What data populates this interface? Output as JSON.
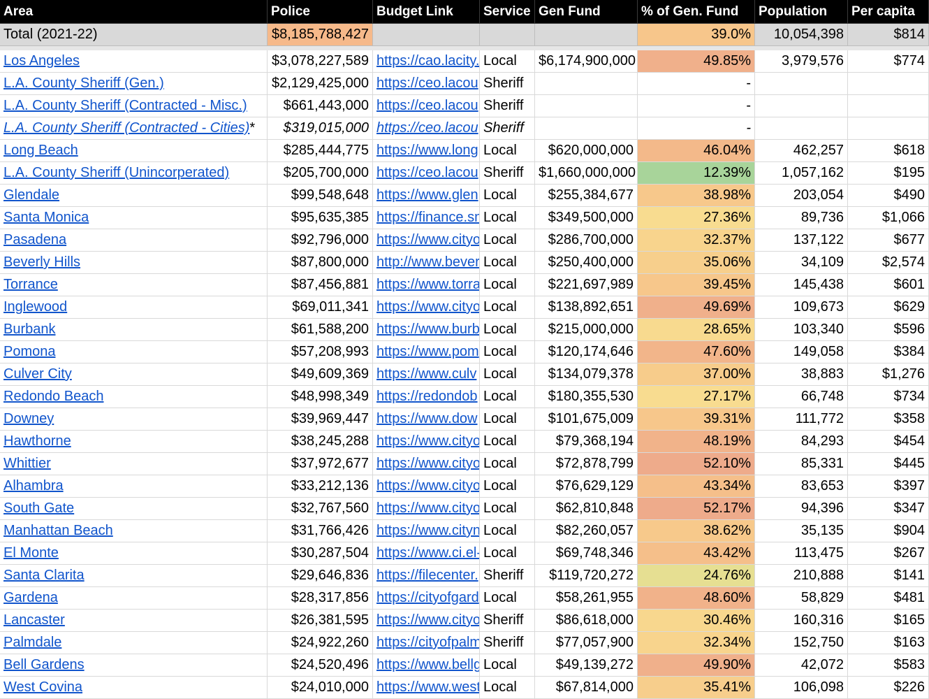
{
  "header": [
    "Area",
    "Police",
    "Budget Link",
    "Service",
    "Gen Fund",
    "% of Gen. Fund",
    "Population",
    "Per capita"
  ],
  "total": {
    "area": "Total (2021-22)",
    "police": "$8,185,788,427",
    "link": "",
    "service": "",
    "gen_fund": "",
    "pct": "39.0%",
    "pct_color": "#f7c68b",
    "population": "10,054,398",
    "per_capita": "$814",
    "police_color": "#f6b98a"
  },
  "rows": [
    {
      "area": "Los Angeles",
      "police": "$3,078,227,589",
      "link": "https://cao.lacity.",
      "service": "Local",
      "gen_fund": "$6,174,900,000",
      "pct": "49.85%",
      "pct_color": "#f0b08b",
      "population": "3,979,576",
      "per_capita": "$774",
      "italic": false
    },
    {
      "area": "L.A. County Sheriff (Gen.)",
      "police": "$2,129,425,000",
      "link": "https://ceo.lacou",
      "service": "Sheriff",
      "gen_fund": "",
      "pct": "-",
      "pct_color": "",
      "population": "",
      "per_capita": "",
      "italic": false
    },
    {
      "area": "L.A. County Sheriff (Contracted - Misc.)",
      "police": "$661,443,000",
      "link": "https://ceo.lacou",
      "service": "Sheriff",
      "gen_fund": "",
      "pct": "-",
      "pct_color": "",
      "population": "",
      "per_capita": "",
      "italic": false
    },
    {
      "area": "L.A. County Sheriff (Contracted - Cities)",
      "area_suffix": "*",
      "police": "$319,015,000",
      "link": "https://ceo.lacou",
      "service": "Sheriff",
      "gen_fund": "",
      "pct": "-",
      "pct_color": "",
      "population": "",
      "per_capita": "",
      "italic": true
    },
    {
      "area": "Long Beach",
      "police": "$285,444,775",
      "link": "https://www.long",
      "service": "Local",
      "gen_fund": "$620,000,000",
      "pct": "46.04%",
      "pct_color": "#f3b98a",
      "population": "462,257",
      "per_capita": "$618",
      "italic": false
    },
    {
      "area": "L.A. County Sheriff (Unincorperated)",
      "police": "$205,700,000",
      "link": "https://ceo.lacou",
      "service": "Sheriff",
      "gen_fund": "$1,660,000,000",
      "pct": "12.39%",
      "pct_color": "#a8d49a",
      "population": "1,057,162",
      "per_capita": "$195",
      "italic": false
    },
    {
      "area": "Glendale",
      "police": "$99,548,648",
      "link": "https://www.glen",
      "service": "Local",
      "gen_fund": "$255,384,677",
      "pct": "38.98%",
      "pct_color": "#f7c88b",
      "population": "203,054",
      "per_capita": "$490",
      "italic": false
    },
    {
      "area": "Santa Monica",
      "police": "$95,635,385",
      "link": "https://finance.sm",
      "service": "Local",
      "gen_fund": "$349,500,000",
      "pct": "27.36%",
      "pct_color": "#f8dc90",
      "population": "89,736",
      "per_capita": "$1,066",
      "italic": false
    },
    {
      "area": "Pasadena",
      "police": "$92,796,000",
      "link": "https://www.cityo",
      "service": "Local",
      "gen_fund": "$286,700,000",
      "pct": "32.37%",
      "pct_color": "#f8d48d",
      "population": "137,122",
      "per_capita": "$677",
      "italic": false
    },
    {
      "area": "Beverly Hills",
      "police": "$87,800,000",
      "link": "http://www.bever",
      "service": "Local",
      "gen_fund": "$250,400,000",
      "pct": "35.06%",
      "pct_color": "#f7cf8c",
      "population": "34,109",
      "per_capita": "$2,574",
      "italic": false
    },
    {
      "area": "Torrance",
      "police": "$87,456,881",
      "link": "https://www.torra",
      "service": "Local",
      "gen_fund": "$221,697,989",
      "pct": "39.45%",
      "pct_color": "#f7c78b",
      "population": "145,438",
      "per_capita": "$601",
      "italic": false
    },
    {
      "area": "Inglewood",
      "police": "$69,011,341",
      "link": "https://www.cityo",
      "service": "Local",
      "gen_fund": "$138,892,651",
      "pct": "49.69%",
      "pct_color": "#f0b08b",
      "population": "109,673",
      "per_capita": "$629",
      "italic": false
    },
    {
      "area": "Burbank",
      "police": "$61,588,200",
      "link": "https://www.burb",
      "service": "Local",
      "gen_fund": "$215,000,000",
      "pct": "28.65%",
      "pct_color": "#f8da8f",
      "population": "103,340",
      "per_capita": "$596",
      "italic": false
    },
    {
      "area": "Pomona",
      "police": "$57,208,993",
      "link": "https://www.pom",
      "service": "Local",
      "gen_fund": "$120,174,646",
      "pct": "47.60%",
      "pct_color": "#f2b58a",
      "population": "149,058",
      "per_capita": "$384",
      "italic": false
    },
    {
      "area": "Culver City",
      "police": "$49,609,369",
      "link": "https://www.culv",
      "service": "Local",
      "gen_fund": "$134,079,378",
      "pct": "37.00%",
      "pct_color": "#f7cc8b",
      "population": "38,883",
      "per_capita": "$1,276",
      "italic": false
    },
    {
      "area": "Redondo Beach",
      "police": "$48,998,349",
      "link": "https://redondob",
      "service": "Local",
      "gen_fund": "$180,355,530",
      "pct": "27.17%",
      "pct_color": "#f8dc90",
      "population": "66,748",
      "per_capita": "$734",
      "italic": false
    },
    {
      "area": "Downey",
      "police": "$39,969,447",
      "link": "https://www.dow",
      "service": "Local",
      "gen_fund": "$101,675,009",
      "pct": "39.31%",
      "pct_color": "#f7c78b",
      "population": "111,772",
      "per_capita": "$358",
      "italic": false
    },
    {
      "area": "Hawthorne",
      "police": "$38,245,288",
      "link": "https://www.cityo",
      "service": "Local",
      "gen_fund": "$79,368,194",
      "pct": "48.19%",
      "pct_color": "#f1b38a",
      "population": "84,293",
      "per_capita": "$454",
      "italic": false
    },
    {
      "area": "Whittier",
      "police": "$37,972,677",
      "link": "https://www.cityo",
      "service": "Local",
      "gen_fund": "$72,878,799",
      "pct": "52.10%",
      "pct_color": "#eeab8b",
      "population": "85,331",
      "per_capita": "$445",
      "italic": false
    },
    {
      "area": "Alhambra",
      "police": "$33,212,136",
      "link": "https://www.cityo",
      "service": "Local",
      "gen_fund": "$76,629,129",
      "pct": "43.34%",
      "pct_color": "#f5bf8a",
      "population": "83,653",
      "per_capita": "$397",
      "italic": false
    },
    {
      "area": "South Gate",
      "police": "$32,767,560",
      "link": "https://www.cityo",
      "service": "Local",
      "gen_fund": "$62,810,848",
      "pct": "52.17%",
      "pct_color": "#eeab8b",
      "population": "94,396",
      "per_capita": "$347",
      "italic": false
    },
    {
      "area": "Manhattan Beach",
      "police": "$31,766,426",
      "link": "https://www.cityn",
      "service": "Local",
      "gen_fund": "$82,260,057",
      "pct": "38.62%",
      "pct_color": "#f7c98b",
      "population": "35,135",
      "per_capita": "$904",
      "italic": false
    },
    {
      "area": "El Monte",
      "police": "$30,287,504",
      "link": "https://www.ci.el-",
      "service": "Local",
      "gen_fund": "$69,748,346",
      "pct": "43.42%",
      "pct_color": "#f5bf8a",
      "population": "113,475",
      "per_capita": "$267",
      "italic": false
    },
    {
      "area": "Santa Clarita",
      "police": "$29,646,836",
      "link": "https://filecenter.",
      "service": "Sheriff",
      "gen_fund": "$119,720,272",
      "pct": "24.76%",
      "pct_color": "#e6df92",
      "population": "210,888",
      "per_capita": "$141",
      "italic": false
    },
    {
      "area": "Gardena",
      "police": "$28,317,856",
      "link": "https://cityofgard",
      "service": "Local",
      "gen_fund": "$58,261,955",
      "pct": "48.60%",
      "pct_color": "#f1b28a",
      "population": "58,829",
      "per_capita": "$481",
      "italic": false
    },
    {
      "area": "Lancaster",
      "police": "$26,381,595",
      "link": "https://www.cityo",
      "service": "Sheriff",
      "gen_fund": "$86,618,000",
      "pct": "30.46%",
      "pct_color": "#f8d78e",
      "population": "160,316",
      "per_capita": "$165",
      "italic": false
    },
    {
      "area": "Palmdale",
      "police": "$24,922,260",
      "link": "https://cityofpalm",
      "service": "Sheriff",
      "gen_fund": "$77,057,900",
      "pct": "32.34%",
      "pct_color": "#f8d48d",
      "population": "152,750",
      "per_capita": "$163",
      "italic": false
    },
    {
      "area": "Bell Gardens",
      "police": "$24,520,496",
      "link": "https://www.bellg",
      "service": "Local",
      "gen_fund": "$49,139,272",
      "pct": "49.90%",
      "pct_color": "#f0b08b",
      "population": "42,072",
      "per_capita": "$583",
      "italic": false
    },
    {
      "area": "West Covina",
      "police": "$24,010,000",
      "link": "https://www.west",
      "service": "Local",
      "gen_fund": "$67,814,000",
      "pct": "35.41%",
      "pct_color": "#f7ce8c",
      "population": "106,098",
      "per_capita": "$226",
      "italic": false
    }
  ]
}
